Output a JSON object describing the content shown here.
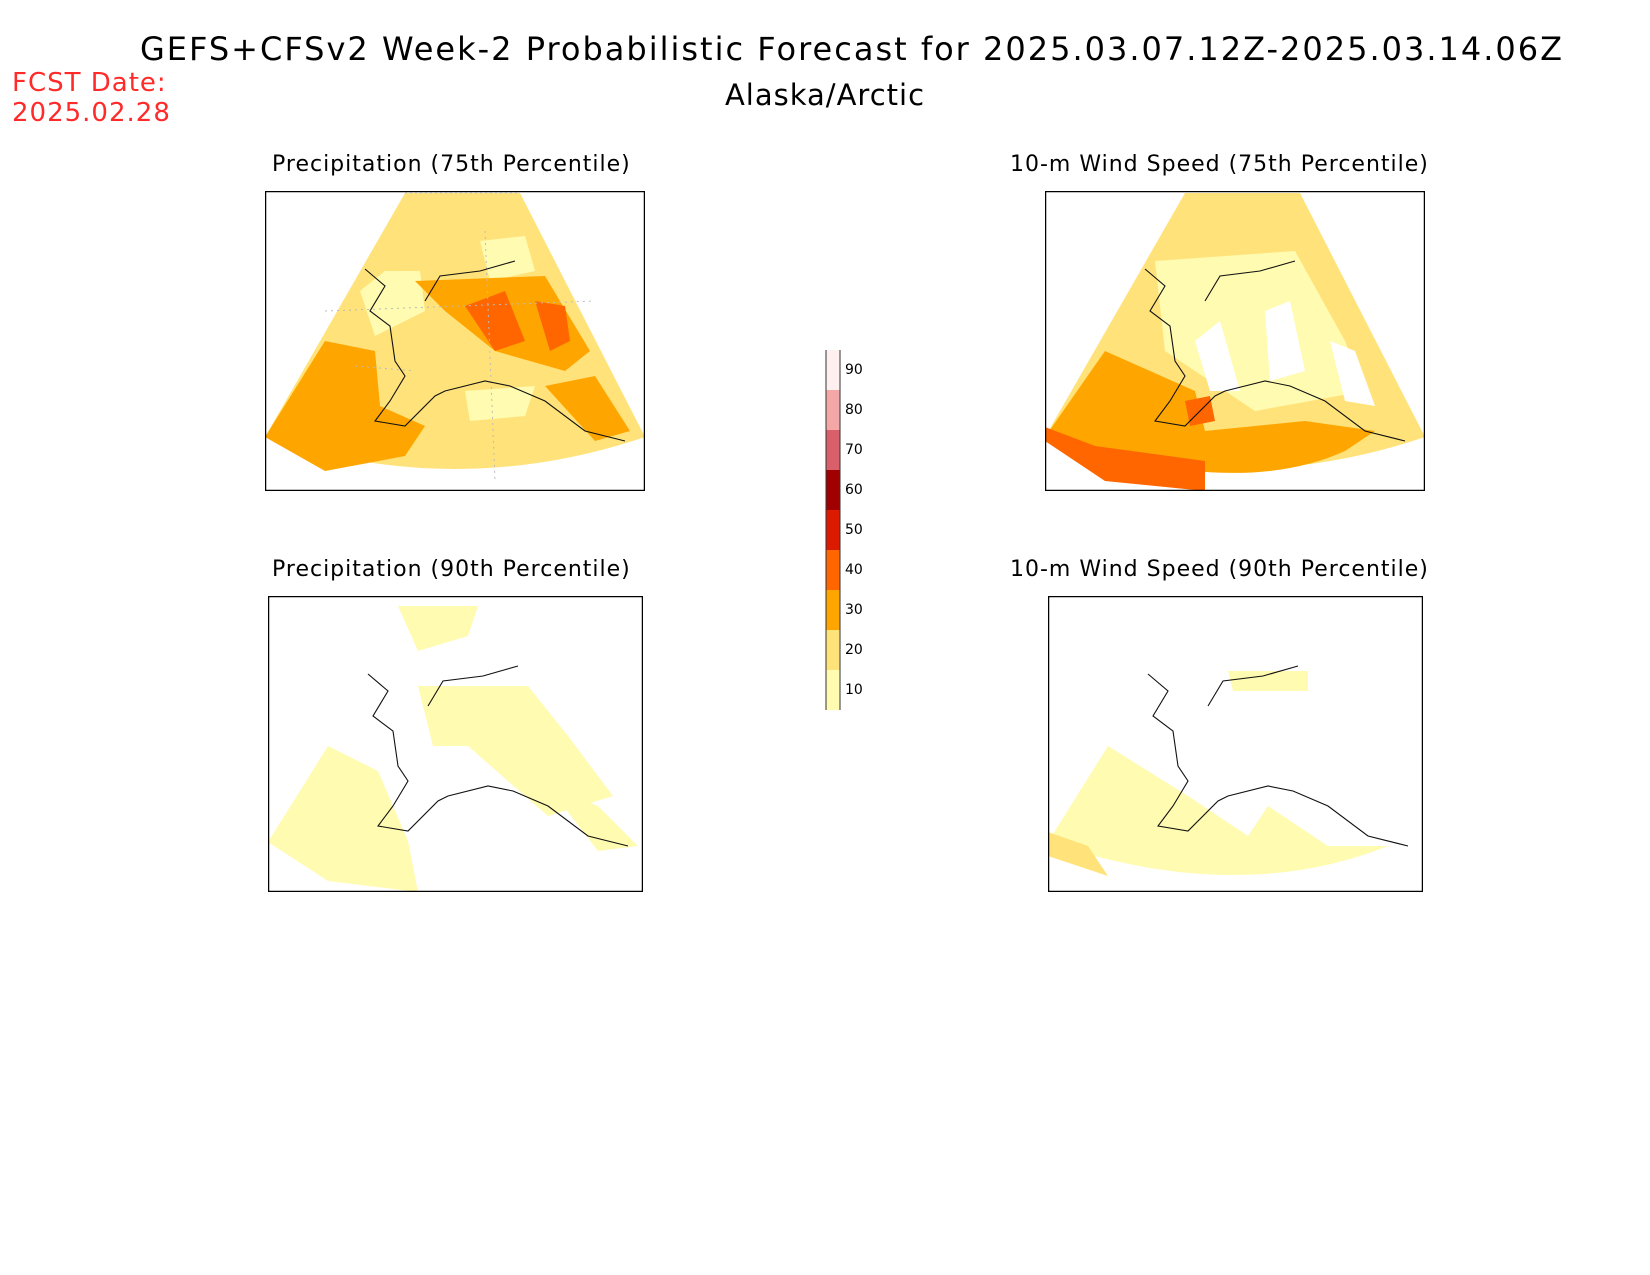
{
  "header": {
    "title": "GEFS+CFSv2 Week-2 Probabilistic Forecast for 2025.03.07.12Z-2025.03.14.06Z",
    "region": "Alaska/Arctic",
    "fcst_label": "FCST Date:",
    "fcst_date": "2025.02.28"
  },
  "panels": [
    {
      "title": "Precipitation (75th Percentile)"
    },
    {
      "title": "10-m Wind Speed (75th Percentile)"
    },
    {
      "title": "Precipitation (90th Percentile)"
    },
    {
      "title": "10-m Wind Speed (90th Percentile)"
    }
  ],
  "colorbar": {
    "ticks": [
      "90",
      "80",
      "70",
      "60",
      "50",
      "40",
      "30",
      "20",
      "10"
    ],
    "colors": [
      "#fff0f0",
      "#f4a7a7",
      "#d9606a",
      "#a00000",
      "#dc1a00",
      "#ff6600",
      "#ffa500",
      "#ffe37a",
      "#fffbb0"
    ]
  },
  "colors": {
    "light_yellow": "#fffbb0",
    "yellow": "#ffe37a",
    "orange": "#ffa500",
    "dark_orange": "#ff6600",
    "red": "#dc1a00",
    "fcst_date_color": "#ff2a2a"
  }
}
